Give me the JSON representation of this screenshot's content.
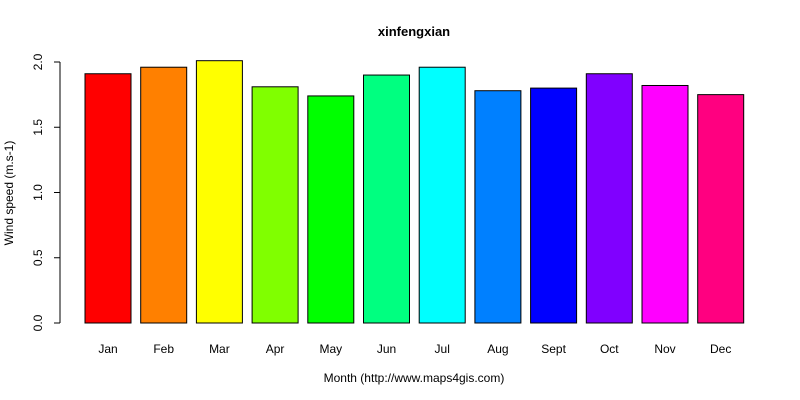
{
  "chart_data": {
    "type": "bar",
    "title": "xinfengxian",
    "xlabel": "Month (http://www.maps4gis.com)",
    "ylabel": "Wind speed (m.s-1)",
    "ylim": [
      0,
      2.0
    ],
    "yticks": [
      "0.0",
      "0.5",
      "1.0",
      "1.5",
      "2.0"
    ],
    "grid": false,
    "categories": [
      "Jan",
      "Feb",
      "Mar",
      "Apr",
      "May",
      "Jun",
      "Jul",
      "Aug",
      "Sept",
      "Oct",
      "Nov",
      "Dec"
    ],
    "values": [
      1.91,
      1.96,
      2.01,
      1.81,
      1.74,
      1.9,
      1.96,
      1.78,
      1.8,
      1.91,
      1.82,
      1.75
    ],
    "colors": [
      "#FF0000",
      "#FF8000",
      "#FFFF00",
      "#80FF00",
      "#00FF00",
      "#00FF80",
      "#00FFFF",
      "#0080FF",
      "#0000FF",
      "#8000FF",
      "#FF00FF",
      "#FF0080"
    ]
  }
}
